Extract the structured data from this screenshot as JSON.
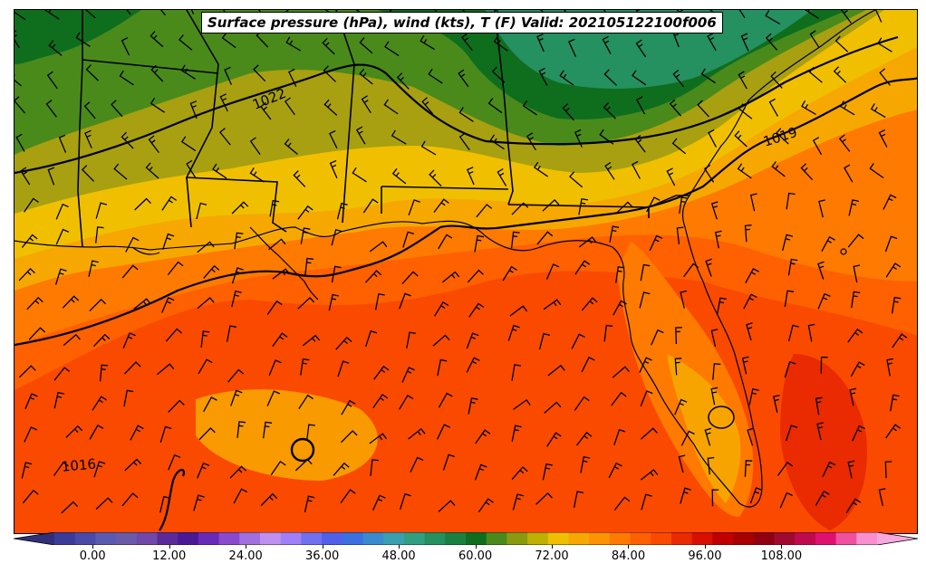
{
  "title": "Surface pressure (hPa), wind (kts), T (F) Valid: 202105122100f006",
  "isobars": [
    {
      "label": "1022"
    },
    {
      "label": "1019"
    },
    {
      "label": "1016"
    }
  ],
  "colorbar": {
    "ticks": [
      "0.00",
      "12.00",
      "24.00",
      "36.00",
      "48.00",
      "60.00",
      "72.00",
      "84.00",
      "96.00",
      "108.00"
    ],
    "min": -6,
    "max": 123,
    "colors": [
      "#3b3b9a",
      "#4a4aa8",
      "#5a5ab0",
      "#6a5aa8",
      "#7048a8",
      "#5a2a9a",
      "#4a1a96",
      "#6a2ab8",
      "#8a4ad0",
      "#a070e0",
      "#c090f0",
      "#a080f8",
      "#7070f0",
      "#5060e8",
      "#3a70e0",
      "#3a8ad0",
      "#3aa0b0",
      "#30a080",
      "#259060",
      "#1a8040",
      "#0e6e1e",
      "#4a8a1a",
      "#8a9a10",
      "#c0b000",
      "#f0c000",
      "#f7a800",
      "#fb9400",
      "#ff7a00",
      "#ff6000",
      "#fa4a00",
      "#ea2a00",
      "#d81000",
      "#c00000",
      "#a80000",
      "#900010",
      "#a00a30",
      "#c00a50",
      "#e01070",
      "#f050a0",
      "#f890d0"
    ]
  },
  "colors": {
    "frame": "#000000",
    "coast": "#000000"
  }
}
